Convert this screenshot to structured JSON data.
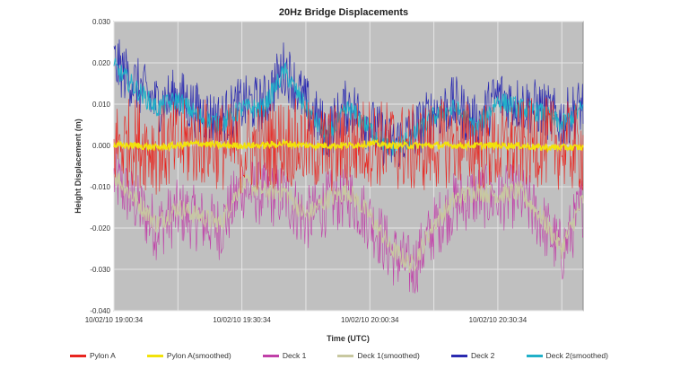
{
  "chart_data": {
    "type": "line",
    "title": "20Hz Bridge Displacements",
    "xlabel": "Time (UTC)",
    "ylabel": "Height Displacement (m)",
    "ylim": [
      -0.04,
      0.03
    ],
    "yticks": [
      "0.030",
      "0.020",
      "0.010",
      "0.000",
      "-0.010",
      "-0.020",
      "-0.030",
      "-0.040"
    ],
    "x_range": [
      "10/02/10 19:00:34",
      "10/02/10 20:52:00"
    ],
    "xticks": [
      "10/02/10 19:00:34",
      "10/02/10 19:30:34",
      "10/02/10 20:00:34",
      "10/02/10 20:30:34"
    ],
    "grid": true,
    "legend_position": "bottom",
    "plot_background": "#c0c0c0",
    "x_minutes": [
      0,
      5,
      10,
      15,
      20,
      25,
      30,
      35,
      40,
      45,
      50,
      55,
      60,
      65,
      70,
      75,
      80,
      85,
      90,
      95,
      100,
      105,
      110
    ],
    "series": [
      {
        "name": "Pylon A",
        "color": "#e8251f",
        "values": [
          0.0,
          0.001,
          -0.001,
          0.0,
          0.001,
          0.0,
          -0.001,
          0.0,
          0.001,
          0.0,
          -0.001,
          0.0,
          0.001,
          0.0,
          -0.001,
          0.0,
          0.001,
          0.0,
          -0.001,
          0.0,
          0.001,
          0.0,
          -0.001
        ]
      },
      {
        "name": "Pylon A(smoothed)",
        "color": "#f2e20a",
        "values": [
          0.0,
          0.0,
          -0.0005,
          0.0,
          0.0005,
          0.0,
          0.0,
          0.0,
          0.0005,
          0.0,
          0.0,
          0.0,
          0.0005,
          0.0,
          0.0,
          0.0,
          0.0,
          0.0,
          0.0,
          0.0,
          -0.0005,
          -0.0005,
          -0.0005
        ]
      },
      {
        "name": "Deck 1",
        "color": "#c040a8",
        "values": [
          -0.008,
          -0.014,
          -0.02,
          -0.016,
          -0.018,
          -0.02,
          -0.01,
          -0.012,
          -0.012,
          -0.018,
          -0.014,
          -0.012,
          -0.018,
          -0.026,
          -0.03,
          -0.02,
          -0.014,
          -0.012,
          -0.013,
          -0.012,
          -0.018,
          -0.026,
          -0.014
        ]
      },
      {
        "name": "Deck 1(smoothed)",
        "color": "#c8c8a0",
        "values": [
          -0.007,
          -0.013,
          -0.019,
          -0.015,
          -0.017,
          -0.019,
          -0.009,
          -0.011,
          -0.011,
          -0.017,
          -0.013,
          -0.011,
          -0.017,
          -0.025,
          -0.029,
          -0.019,
          -0.013,
          -0.011,
          -0.012,
          -0.011,
          -0.017,
          -0.025,
          -0.013
        ]
      },
      {
        "name": "Deck 2",
        "color": "#2a2ab0",
        "values": [
          0.02,
          0.015,
          0.01,
          0.012,
          0.008,
          0.006,
          0.01,
          0.01,
          0.019,
          0.01,
          0.003,
          0.01,
          0.005,
          0.0,
          0.003,
          0.008,
          0.01,
          0.005,
          0.012,
          0.01,
          0.009,
          0.006,
          0.01
        ]
      },
      {
        "name": "Deck 2(smoothed)",
        "color": "#20b0c8",
        "values": [
          0.019,
          0.014,
          0.009,
          0.011,
          0.007,
          0.005,
          0.009,
          0.009,
          0.018,
          0.009,
          0.002,
          0.009,
          0.004,
          -0.001,
          0.002,
          0.007,
          0.009,
          0.004,
          0.011,
          0.009,
          0.008,
          0.005,
          0.009
        ]
      }
    ]
  }
}
